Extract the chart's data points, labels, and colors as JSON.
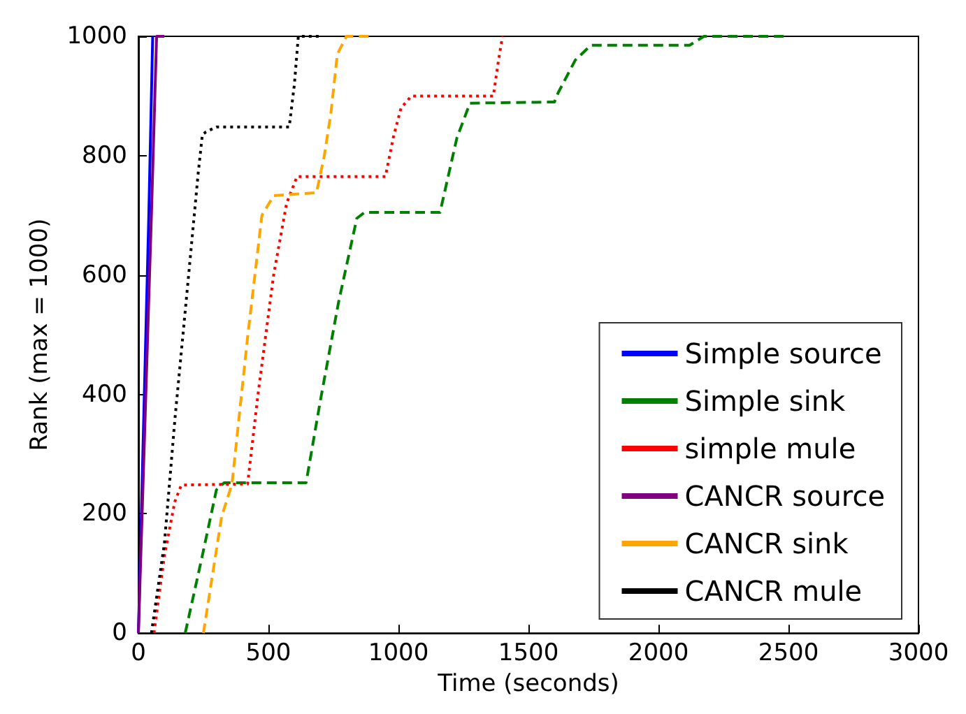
{
  "chart_data": {
    "type": "line",
    "xlabel": "Time (seconds)",
    "ylabel": "Rank (max = 1000)",
    "xlim": [
      0,
      3000
    ],
    "ylim": [
      0,
      1000
    ],
    "xticks": [
      0,
      500,
      1000,
      1500,
      2000,
      2500,
      3000
    ],
    "yticks": [
      0,
      200,
      400,
      600,
      800,
      1000
    ],
    "grid": false,
    "legend": "bottom right",
    "marker": "none",
    "series": [
      {
        "name": "Simple source",
        "color": "#0000ff",
        "line_style": "solid",
        "x": [
          0,
          40,
          55
        ],
        "values": [
          0,
          700,
          1000
        ]
      },
      {
        "name": "Simple sink",
        "color": "#008000",
        "line_style": "dashed",
        "x": [
          180,
          245,
          300,
          330,
          645,
          700,
          770,
          840,
          870,
          1160,
          1225,
          1275,
          1600,
          1615,
          1680,
          1740,
          2120,
          2175,
          2500
        ],
        "values": [
          0,
          128,
          240,
          252,
          252,
          390,
          555,
          695,
          705,
          705,
          830,
          888,
          890,
          906,
          960,
          985,
          985,
          1000,
          1000
        ]
      },
      {
        "name": "simple mule",
        "color": "#ff0000",
        "line_style": "dotted",
        "x": [
          60,
          100,
          140,
          165,
          420,
          460,
          520,
          570,
          610,
          950,
          980,
          1010,
          1050,
          1365,
          1385,
          1400
        ],
        "values": [
          0,
          130,
          220,
          248,
          250,
          400,
          600,
          720,
          765,
          765,
          830,
          880,
          900,
          900,
          960,
          1000
        ]
      },
      {
        "name": "CANCR source",
        "color": "#800080",
        "line_style": "solid",
        "x": [
          0,
          50,
          70,
          100
        ],
        "values": [
          0,
          700,
          1000,
          1000
        ]
      },
      {
        "name": "CANCR sink",
        "color": "#ffa500",
        "line_style": "dashed",
        "x": [
          250,
          320,
          360,
          420,
          475,
          520,
          685,
          715,
          740,
          765,
          800,
          900
        ],
        "values": [
          0,
          195,
          250,
          496,
          700,
          733,
          738,
          800,
          870,
          970,
          1000,
          1000
        ]
      },
      {
        "name": "CANCR mule",
        "color": "#000000",
        "line_style": "dotted",
        "x": [
          50,
          100,
          141,
          193,
          230,
          246,
          260,
          300,
          580,
          600,
          615,
          700
        ],
        "values": [
          0,
          150,
          361,
          599,
          771,
          835,
          840,
          848,
          848,
          920,
          1000,
          1000
        ]
      }
    ]
  }
}
